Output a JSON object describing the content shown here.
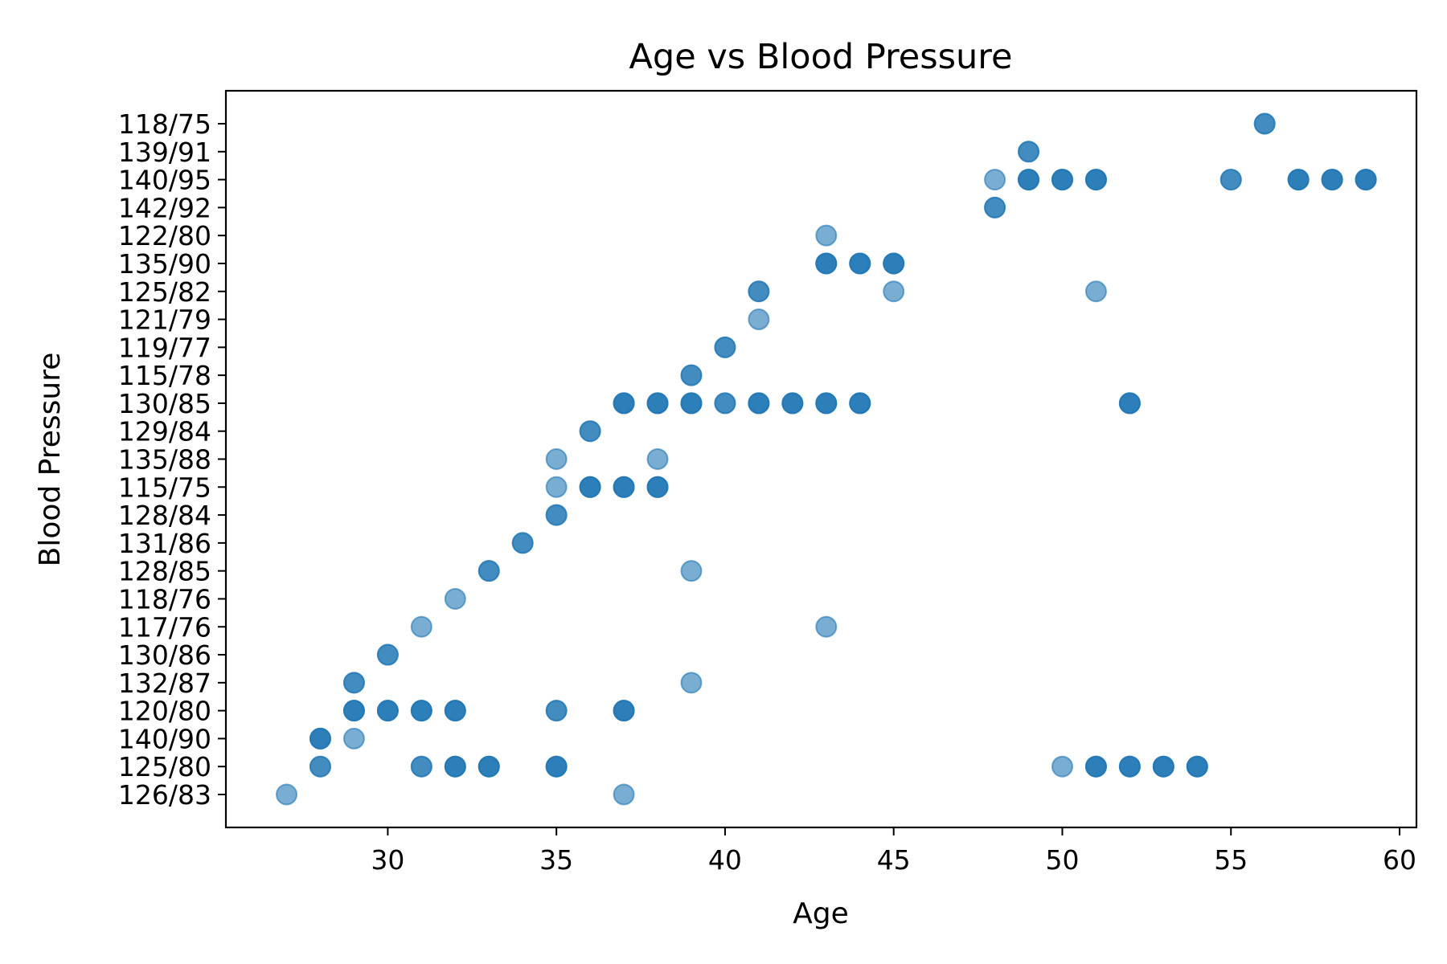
{
  "chart_data": {
    "type": "scatter",
    "title": "Age vs Blood Pressure",
    "xlabel": "Age",
    "ylabel": "Blood Pressure",
    "xlim": [
      25.2,
      60.5
    ],
    "x_ticks": [
      30,
      35,
      40,
      45,
      50,
      55,
      60
    ],
    "categories_y": [
      "126/83",
      "125/80",
      "140/90",
      "120/80",
      "132/87",
      "130/86",
      "117/76",
      "118/76",
      "128/85",
      "131/86",
      "128/84",
      "115/75",
      "135/88",
      "129/84",
      "130/85",
      "115/78",
      "119/77",
      "121/79",
      "125/82",
      "135/90",
      "122/80",
      "142/92",
      "140/95",
      "139/91",
      "118/75"
    ],
    "marker_color": "#1f77b4",
    "marker_alpha": 0.6,
    "grid": false,
    "points": [
      {
        "x": 27,
        "y": "126/83"
      },
      {
        "x": 37,
        "y": "126/83"
      },
      {
        "x": 28,
        "y": "125/80"
      },
      {
        "x": 28,
        "y": "125/80"
      },
      {
        "x": 31,
        "y": "125/80"
      },
      {
        "x": 31,
        "y": "125/80"
      },
      {
        "x": 32,
        "y": "125/80"
      },
      {
        "x": 32,
        "y": "125/80"
      },
      {
        "x": 32,
        "y": "125/80"
      },
      {
        "x": 33,
        "y": "125/80"
      },
      {
        "x": 33,
        "y": "125/80"
      },
      {
        "x": 33,
        "y": "125/80"
      },
      {
        "x": 35,
        "y": "125/80"
      },
      {
        "x": 35,
        "y": "125/80"
      },
      {
        "x": 35,
        "y": "125/80"
      },
      {
        "x": 50,
        "y": "125/80"
      },
      {
        "x": 51,
        "y": "125/80"
      },
      {
        "x": 51,
        "y": "125/80"
      },
      {
        "x": 51,
        "y": "125/80"
      },
      {
        "x": 52,
        "y": "125/80"
      },
      {
        "x": 52,
        "y": "125/80"
      },
      {
        "x": 52,
        "y": "125/80"
      },
      {
        "x": 53,
        "y": "125/80"
      },
      {
        "x": 53,
        "y": "125/80"
      },
      {
        "x": 53,
        "y": "125/80"
      },
      {
        "x": 54,
        "y": "125/80"
      },
      {
        "x": 54,
        "y": "125/80"
      },
      {
        "x": 54,
        "y": "125/80"
      },
      {
        "x": 28,
        "y": "140/90"
      },
      {
        "x": 28,
        "y": "140/90"
      },
      {
        "x": 28,
        "y": "140/90"
      },
      {
        "x": 29,
        "y": "140/90"
      },
      {
        "x": 29,
        "y": "120/80"
      },
      {
        "x": 29,
        "y": "120/80"
      },
      {
        "x": 29,
        "y": "120/80"
      },
      {
        "x": 30,
        "y": "120/80"
      },
      {
        "x": 30,
        "y": "120/80"
      },
      {
        "x": 30,
        "y": "120/80"
      },
      {
        "x": 31,
        "y": "120/80"
      },
      {
        "x": 31,
        "y": "120/80"
      },
      {
        "x": 31,
        "y": "120/80"
      },
      {
        "x": 32,
        "y": "120/80"
      },
      {
        "x": 32,
        "y": "120/80"
      },
      {
        "x": 32,
        "y": "120/80"
      },
      {
        "x": 35,
        "y": "120/80"
      },
      {
        "x": 35,
        "y": "120/80"
      },
      {
        "x": 37,
        "y": "120/80"
      },
      {
        "x": 37,
        "y": "120/80"
      },
      {
        "x": 37,
        "y": "120/80"
      },
      {
        "x": 29,
        "y": "132/87"
      },
      {
        "x": 29,
        "y": "132/87"
      },
      {
        "x": 39,
        "y": "132/87"
      },
      {
        "x": 30,
        "y": "130/86"
      },
      {
        "x": 30,
        "y": "130/86"
      },
      {
        "x": 31,
        "y": "117/76"
      },
      {
        "x": 43,
        "y": "117/76"
      },
      {
        "x": 32,
        "y": "118/76"
      },
      {
        "x": 33,
        "y": "128/85"
      },
      {
        "x": 33,
        "y": "128/85"
      },
      {
        "x": 39,
        "y": "128/85"
      },
      {
        "x": 34,
        "y": "131/86"
      },
      {
        "x": 34,
        "y": "131/86"
      },
      {
        "x": 35,
        "y": "128/84"
      },
      {
        "x": 35,
        "y": "128/84"
      },
      {
        "x": 35,
        "y": "115/75"
      },
      {
        "x": 36,
        "y": "115/75"
      },
      {
        "x": 36,
        "y": "115/75"
      },
      {
        "x": 36,
        "y": "115/75"
      },
      {
        "x": 37,
        "y": "115/75"
      },
      {
        "x": 37,
        "y": "115/75"
      },
      {
        "x": 37,
        "y": "115/75"
      },
      {
        "x": 38,
        "y": "115/75"
      },
      {
        "x": 38,
        "y": "115/75"
      },
      {
        "x": 38,
        "y": "115/75"
      },
      {
        "x": 35,
        "y": "135/88"
      },
      {
        "x": 38,
        "y": "135/88"
      },
      {
        "x": 36,
        "y": "129/84"
      },
      {
        "x": 36,
        "y": "129/84"
      },
      {
        "x": 37,
        "y": "130/85"
      },
      {
        "x": 37,
        "y": "130/85"
      },
      {
        "x": 37,
        "y": "130/85"
      },
      {
        "x": 38,
        "y": "130/85"
      },
      {
        "x": 38,
        "y": "130/85"
      },
      {
        "x": 38,
        "y": "130/85"
      },
      {
        "x": 39,
        "y": "130/85"
      },
      {
        "x": 39,
        "y": "130/85"
      },
      {
        "x": 39,
        "y": "130/85"
      },
      {
        "x": 40,
        "y": "130/85"
      },
      {
        "x": 40,
        "y": "130/85"
      },
      {
        "x": 41,
        "y": "130/85"
      },
      {
        "x": 41,
        "y": "130/85"
      },
      {
        "x": 41,
        "y": "130/85"
      },
      {
        "x": 42,
        "y": "130/85"
      },
      {
        "x": 42,
        "y": "130/85"
      },
      {
        "x": 42,
        "y": "130/85"
      },
      {
        "x": 43,
        "y": "130/85"
      },
      {
        "x": 43,
        "y": "130/85"
      },
      {
        "x": 43,
        "y": "130/85"
      },
      {
        "x": 44,
        "y": "130/85"
      },
      {
        "x": 44,
        "y": "130/85"
      },
      {
        "x": 44,
        "y": "130/85"
      },
      {
        "x": 52,
        "y": "130/85"
      },
      {
        "x": 52,
        "y": "130/85"
      },
      {
        "x": 52,
        "y": "130/85"
      },
      {
        "x": 39,
        "y": "115/78"
      },
      {
        "x": 39,
        "y": "115/78"
      },
      {
        "x": 40,
        "y": "119/77"
      },
      {
        "x": 40,
        "y": "119/77"
      },
      {
        "x": 41,
        "y": "121/79"
      },
      {
        "x": 41,
        "y": "125/82"
      },
      {
        "x": 41,
        "y": "125/82"
      },
      {
        "x": 45,
        "y": "125/82"
      },
      {
        "x": 51,
        "y": "125/82"
      },
      {
        "x": 43,
        "y": "135/90"
      },
      {
        "x": 43,
        "y": "135/90"
      },
      {
        "x": 43,
        "y": "135/90"
      },
      {
        "x": 44,
        "y": "135/90"
      },
      {
        "x": 44,
        "y": "135/90"
      },
      {
        "x": 44,
        "y": "135/90"
      },
      {
        "x": 45,
        "y": "135/90"
      },
      {
        "x": 45,
        "y": "135/90"
      },
      {
        "x": 45,
        "y": "135/90"
      },
      {
        "x": 43,
        "y": "122/80"
      },
      {
        "x": 48,
        "y": "142/92"
      },
      {
        "x": 48,
        "y": "142/92"
      },
      {
        "x": 48,
        "y": "140/95"
      },
      {
        "x": 49,
        "y": "140/95"
      },
      {
        "x": 49,
        "y": "140/95"
      },
      {
        "x": 49,
        "y": "140/95"
      },
      {
        "x": 50,
        "y": "140/95"
      },
      {
        "x": 50,
        "y": "140/95"
      },
      {
        "x": 50,
        "y": "140/95"
      },
      {
        "x": 51,
        "y": "140/95"
      },
      {
        "x": 51,
        "y": "140/95"
      },
      {
        "x": 51,
        "y": "140/95"
      },
      {
        "x": 55,
        "y": "140/95"
      },
      {
        "x": 55,
        "y": "140/95"
      },
      {
        "x": 57,
        "y": "140/95"
      },
      {
        "x": 57,
        "y": "140/95"
      },
      {
        "x": 57,
        "y": "140/95"
      },
      {
        "x": 58,
        "y": "140/95"
      },
      {
        "x": 58,
        "y": "140/95"
      },
      {
        "x": 58,
        "y": "140/95"
      },
      {
        "x": 59,
        "y": "140/95"
      },
      {
        "x": 59,
        "y": "140/95"
      },
      {
        "x": 59,
        "y": "140/95"
      },
      {
        "x": 49,
        "y": "139/91"
      },
      {
        "x": 49,
        "y": "139/91"
      },
      {
        "x": 56,
        "y": "118/75"
      },
      {
        "x": 56,
        "y": "118/75"
      }
    ]
  }
}
